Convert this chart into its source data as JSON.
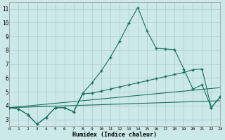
{
  "bg_color": "#cce8e8",
  "grid_color": "#aacccc",
  "line_color": "#1a7060",
  "xlim": [
    0,
    23
  ],
  "ylim": [
    2.5,
    11.5
  ],
  "xtick_vals": [
    0,
    1,
    2,
    3,
    4,
    5,
    6,
    7,
    8,
    9,
    10,
    11,
    12,
    13,
    14,
    15,
    16,
    17,
    18,
    19,
    20,
    21,
    22,
    23
  ],
  "ytick_vals": [
    3,
    4,
    5,
    6,
    7,
    8,
    9,
    10,
    11
  ],
  "xlabel": "Humidex (Indice chaleur)",
  "curve1_x": [
    0,
    1,
    2,
    3,
    4,
    5,
    6,
    7,
    8,
    9,
    10,
    11,
    12,
    13,
    14,
    15,
    16,
    17,
    18,
    19,
    20,
    21,
    22,
    23
  ],
  "curve1_y": [
    3.85,
    3.75,
    3.35,
    2.65,
    3.15,
    3.85,
    3.85,
    3.55,
    4.9,
    5.65,
    6.5,
    7.5,
    8.65,
    9.95,
    11.1,
    9.4,
    8.15,
    8.1,
    8.05,
    6.65,
    5.2,
    5.5,
    3.85,
    4.65
  ],
  "curve2_x": [
    0,
    1,
    2,
    3,
    4,
    5,
    6,
    7,
    8,
    9,
    10,
    11,
    12,
    13,
    14,
    15,
    16,
    17,
    18,
    19,
    20,
    21,
    22,
    23
  ],
  "curve2_y": [
    3.85,
    3.75,
    3.35,
    2.65,
    3.15,
    3.85,
    3.85,
    3.55,
    4.85,
    4.9,
    5.05,
    5.2,
    5.35,
    5.5,
    5.65,
    5.8,
    5.95,
    6.1,
    6.25,
    6.4,
    6.6,
    6.65,
    3.85,
    4.65
  ],
  "line3_x": [
    0,
    23
  ],
  "line3_y": [
    3.85,
    5.3
  ],
  "line4_x": [
    0,
    23
  ],
  "line4_y": [
    3.85,
    4.35
  ]
}
